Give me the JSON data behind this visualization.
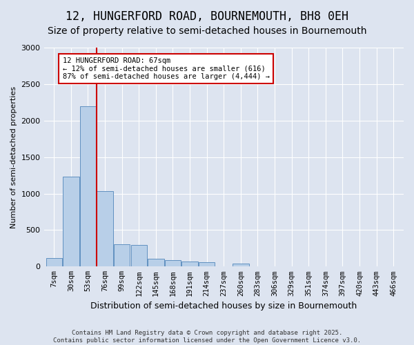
{
  "title_line1": "12, HUNGERFORD ROAD, BOURNEMOUTH, BH8 0EH",
  "title_line2": "Size of property relative to semi-detached houses in Bournemouth",
  "xlabel": "Distribution of semi-detached houses by size in Bournemouth",
  "ylabel": "Number of semi-detached properties",
  "footer": "Contains HM Land Registry data © Crown copyright and database right 2025.\nContains public sector information licensed under the Open Government Licence v3.0.",
  "bin_labels": [
    "7sqm",
    "30sqm",
    "53sqm",
    "76sqm",
    "99sqm",
    "122sqm",
    "145sqm",
    "168sqm",
    "191sqm",
    "214sqm",
    "237sqm",
    "260sqm",
    "283sqm",
    "306sqm",
    "329sqm",
    "351sqm",
    "374sqm",
    "397sqm",
    "420sqm",
    "443sqm",
    "466sqm"
  ],
  "bar_values": [
    120,
    1230,
    2200,
    1030,
    310,
    300,
    110,
    90,
    70,
    55,
    0,
    40,
    0,
    0,
    0,
    0,
    0,
    0,
    0,
    0,
    0
  ],
  "bar_color": "#b8cfe8",
  "bar_edge_color": "#6090c0",
  "ylim": [
    0,
    3000
  ],
  "yticks": [
    0,
    500,
    1000,
    1500,
    2000,
    2500,
    3000
  ],
  "red_line_x": 2.5,
  "annotation_text": "12 HUNGERFORD ROAD: 67sqm\n← 12% of semi-detached houses are smaller (616)\n87% of semi-detached houses are larger (4,444) →",
  "annotation_box_color": "#ffffff",
  "annotation_box_edge": "#cc0000",
  "red_line_color": "#cc0000",
  "plot_bg_color": "#dde4f0",
  "fig_bg_color": "#dde4f0",
  "title_fontsize": 12,
  "subtitle_fontsize": 10
}
